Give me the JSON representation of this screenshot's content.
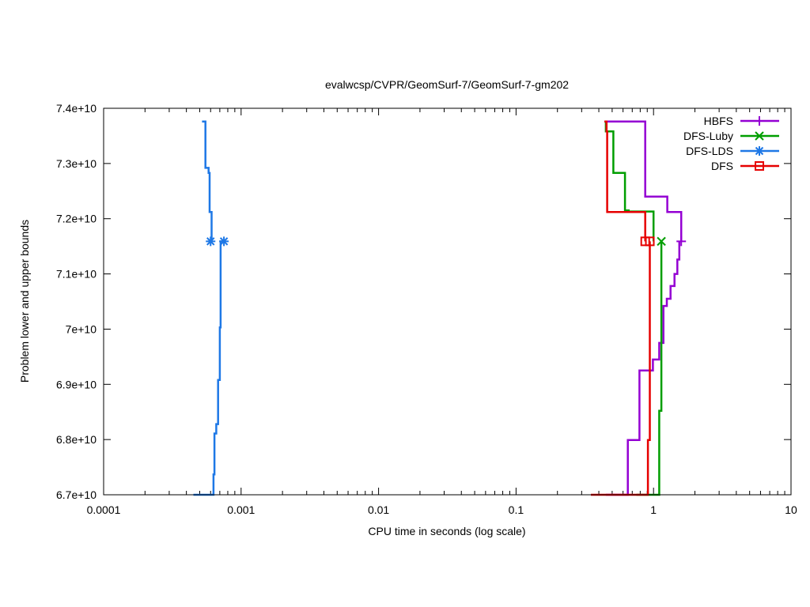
{
  "chart_data": {
    "type": "line",
    "title": "evalwcsp/CVPR/GeomSurf-7/GeomSurf-7-gm202",
    "xlabel": "CPU time in seconds (log scale)",
    "ylabel": "Problem lower and upper bounds",
    "x_scale": "log",
    "xlim": [
      0.0001,
      10
    ],
    "ylim": [
      67000000000,
      74000000000
    ],
    "x_ticks": [
      {
        "value": 0.0001,
        "label": "0.0001"
      },
      {
        "value": 0.001,
        "label": "0.001"
      },
      {
        "value": 0.01,
        "label": "0.01"
      },
      {
        "value": 0.1,
        "label": "0.1"
      },
      {
        "value": 1,
        "label": "1"
      },
      {
        "value": 10,
        "label": "10"
      }
    ],
    "y_ticks": [
      {
        "value": 67000000000,
        "label": "6.7e+10"
      },
      {
        "value": 68000000000,
        "label": "6.8e+10"
      },
      {
        "value": 69000000000,
        "label": "6.9e+10"
      },
      {
        "value": 70000000000,
        "label": "7e+10"
      },
      {
        "value": 71000000000,
        "label": "7.1e+10"
      },
      {
        "value": 72000000000,
        "label": "7.2e+10"
      },
      {
        "value": 73000000000,
        "label": "7.3e+10"
      },
      {
        "value": 74000000000,
        "label": "7.4e+10"
      }
    ],
    "grid": false,
    "legend_position": "top-right",
    "series": [
      {
        "name": "HBFS",
        "color": "#9400d3",
        "marker": "plus",
        "upper": [
          [
            0.44,
            73760000000
          ],
          [
            0.87,
            73760000000
          ],
          [
            0.87,
            72400000000
          ],
          [
            1.26,
            72400000000
          ],
          [
            1.26,
            72120000000
          ],
          [
            1.59,
            72120000000
          ],
          [
            1.59,
            71590000000
          ]
        ],
        "lower": [
          [
            0.45,
            67000000000
          ],
          [
            0.65,
            67000000000
          ],
          [
            0.65,
            67990000000
          ],
          [
            0.79,
            67990000000
          ],
          [
            0.79,
            69250000000
          ],
          [
            0.99,
            69250000000
          ],
          [
            0.99,
            69450000000
          ],
          [
            1.1,
            69450000000
          ],
          [
            1.1,
            69750000000
          ],
          [
            1.18,
            69750000000
          ],
          [
            1.18,
            70420000000
          ],
          [
            1.25,
            70420000000
          ],
          [
            1.25,
            70550000000
          ],
          [
            1.33,
            70550000000
          ],
          [
            1.33,
            70780000000
          ],
          [
            1.42,
            70780000000
          ],
          [
            1.42,
            71000000000
          ],
          [
            1.49,
            71000000000
          ],
          [
            1.49,
            71260000000
          ],
          [
            1.54,
            71260000000
          ],
          [
            1.54,
            71590000000
          ]
        ],
        "markers": [
          [
            1.59,
            71590000000
          ]
        ]
      },
      {
        "name": "DFS-Luby",
        "color": "#009e00",
        "marker": "x",
        "upper": [
          [
            0.44,
            73760000000
          ],
          [
            0.45,
            73760000000
          ],
          [
            0.45,
            73580000000
          ],
          [
            0.51,
            73580000000
          ],
          [
            0.51,
            72830000000
          ],
          [
            0.62,
            72830000000
          ],
          [
            0.62,
            72150000000
          ],
          [
            0.66,
            72150000000
          ],
          [
            0.66,
            72130000000
          ],
          [
            1.0,
            72130000000
          ],
          [
            1.0,
            71590000000
          ]
        ],
        "lower": [
          [
            0.75,
            67000000000
          ],
          [
            1.1,
            67000000000
          ],
          [
            1.1,
            68520000000
          ],
          [
            1.14,
            68520000000
          ],
          [
            1.14,
            71590000000
          ]
        ],
        "markers": [
          [
            1.14,
            71590000000
          ]
        ]
      },
      {
        "name": "DFS-LDS",
        "color": "#1e78e6",
        "marker": "star",
        "upper": [
          [
            0.00052,
            73760000000
          ],
          [
            0.00055,
            73760000000
          ],
          [
            0.00055,
            72920000000
          ],
          [
            0.00058,
            72920000000
          ],
          [
            0.00058,
            72830000000
          ],
          [
            0.00059,
            72830000000
          ],
          [
            0.00059,
            72120000000
          ],
          [
            0.00061,
            72120000000
          ],
          [
            0.00061,
            71590000000
          ]
        ],
        "lower": [
          [
            0.00045,
            67000000000
          ],
          [
            0.00063,
            67000000000
          ],
          [
            0.00063,
            67370000000
          ],
          [
            0.00064,
            67370000000
          ],
          [
            0.00064,
            68110000000
          ],
          [
            0.00066,
            68110000000
          ],
          [
            0.00066,
            68280000000
          ],
          [
            0.00068,
            68280000000
          ],
          [
            0.00068,
            69080000000
          ],
          [
            0.0007,
            69080000000
          ],
          [
            0.0007,
            70030000000
          ],
          [
            0.00071,
            70030000000
          ],
          [
            0.00071,
            71590000000
          ],
          [
            0.00075,
            71590000000
          ]
        ],
        "markers": [
          [
            0.0006,
            71590000000
          ],
          [
            0.00075,
            71590000000
          ]
        ]
      },
      {
        "name": "DFS",
        "color": "#e60000",
        "marker": "square",
        "upper": [
          [
            0.44,
            73760000000
          ],
          [
            0.455,
            73760000000
          ],
          [
            0.455,
            73580000000
          ],
          [
            0.46,
            73580000000
          ],
          [
            0.46,
            72120000000
          ],
          [
            0.87,
            72120000000
          ],
          [
            0.87,
            71590000000
          ]
        ],
        "lower": [
          [
            0.35,
            67000000000
          ],
          [
            0.91,
            67000000000
          ],
          [
            0.91,
            67990000000
          ],
          [
            0.94,
            67990000000
          ],
          [
            0.94,
            71590000000
          ]
        ],
        "markers": [
          [
            0.87,
            71590000000
          ],
          [
            0.94,
            71590000000
          ]
        ]
      }
    ]
  }
}
